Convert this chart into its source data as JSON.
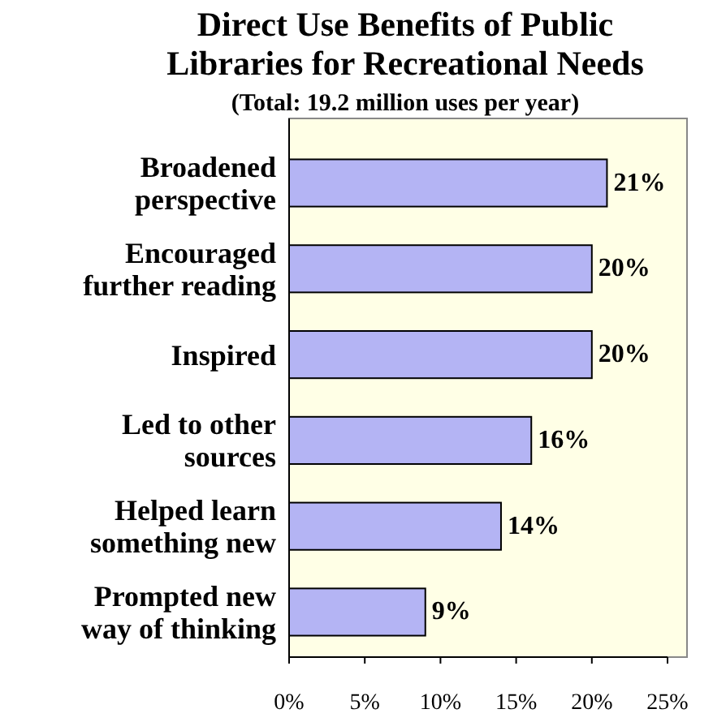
{
  "chart_data": {
    "type": "bar",
    "orientation": "horizontal",
    "title": "Direct Use Benefits of Public Libraries for Recreational Needs",
    "subtitle": "(Total: 19.2 million uses per year)",
    "categories": [
      "Broadened perspective",
      "Encouraged further reading",
      "Inspired",
      "Led to other sources",
      "Helped learn something new",
      "Prompted new way of thinking"
    ],
    "values": [
      21,
      20,
      20,
      16,
      14,
      9
    ],
    "value_labels": [
      "21%",
      "20%",
      "20%",
      "16%",
      "14%",
      "9%"
    ],
    "color": "#b4b4f4",
    "xlim": [
      0,
      25
    ],
    "xticks": [
      {
        "value": 0,
        "label": "0%"
      },
      {
        "value": 5,
        "label": "5%"
      },
      {
        "value": 10,
        "label": "10%"
      },
      {
        "value": 15,
        "label": "15%"
      },
      {
        "value": 20,
        "label": "20%"
      },
      {
        "value": 25,
        "label": "25%"
      }
    ],
    "grid": false
  }
}
